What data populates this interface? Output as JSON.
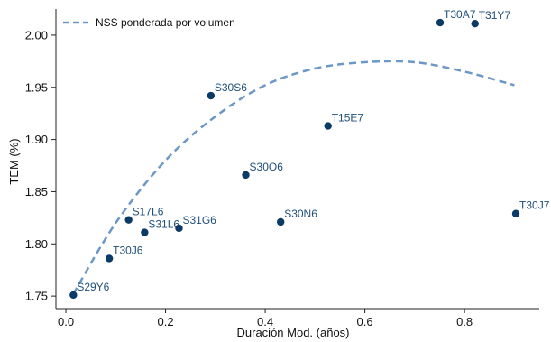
{
  "chart_data": {
    "type": "scatter",
    "xlabel": "Duración Mod. (años)",
    "ylabel": "TEM (%)",
    "xlim": [
      -0.02,
      0.95
    ],
    "ylim": [
      1.738,
      2.025
    ],
    "xticks": [
      0.0,
      0.2,
      0.4,
      0.6,
      0.8
    ],
    "xtick_labels": [
      "0.0",
      "0.2",
      "0.4",
      "0.6",
      "0.8"
    ],
    "yticks": [
      1.75,
      1.8,
      1.85,
      1.9,
      1.95,
      2.0
    ],
    "ytick_labels": [
      "1.75",
      "1.80",
      "1.85",
      "1.90",
      "1.95",
      "2.00"
    ],
    "grid": false,
    "legend_position": "top-left",
    "point_color": "#0b3a66",
    "curve_color": "#6b98c6",
    "points": [
      {
        "label": "S29Y6",
        "x": 0.015,
        "y": 1.751
      },
      {
        "label": "T30J6",
        "x": 0.087,
        "y": 1.786
      },
      {
        "label": "S17L6",
        "x": 0.126,
        "y": 1.823
      },
      {
        "label": "S31L6",
        "x": 0.158,
        "y": 1.811
      },
      {
        "label": "S31G6",
        "x": 0.227,
        "y": 1.815
      },
      {
        "label": "S30S6",
        "x": 0.291,
        "y": 1.942
      },
      {
        "label": "S30O6",
        "x": 0.361,
        "y": 1.866
      },
      {
        "label": "S30N6",
        "x": 0.431,
        "y": 1.821
      },
      {
        "label": "T15E7",
        "x": 0.526,
        "y": 1.913
      },
      {
        "label": "T30A7",
        "x": 0.751,
        "y": 2.012
      },
      {
        "label": "T31Y7",
        "x": 0.821,
        "y": 2.011
      },
      {
        "label": "T30J7",
        "x": 0.903,
        "y": 1.829
      }
    ],
    "series": [
      {
        "name": "NSS ponderada por volumen",
        "style": "dashed",
        "x": [
          0.015,
          0.1,
          0.2,
          0.3,
          0.4,
          0.5,
          0.6,
          0.7,
          0.8,
          0.9
        ],
        "y": [
          1.752,
          1.82,
          1.88,
          1.922,
          1.952,
          1.968,
          1.974,
          1.974,
          1.965,
          1.952
        ]
      }
    ]
  }
}
